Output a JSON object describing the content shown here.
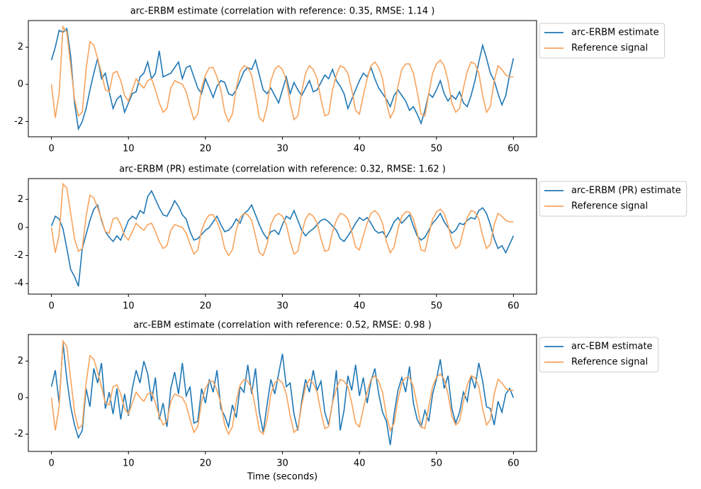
{
  "chart_data": [
    {
      "type": "line",
      "title": "arc-ERBM estimate (correlation with reference: 0.35, RMSE: 1.14 )",
      "x": [
        0,
        0.5,
        1,
        1.5,
        2,
        2.5,
        3,
        3.5,
        4,
        4.5,
        5,
        5.5,
        6,
        6.5,
        7,
        7.5,
        8,
        8.5,
        9,
        9.5,
        10,
        10.5,
        11,
        11.5,
        12,
        12.5,
        13,
        13.5,
        14,
        14.5,
        15,
        15.5,
        16,
        16.5,
        17,
        17.5,
        18,
        18.5,
        19,
        19.5,
        20,
        20.5,
        21,
        21.5,
        22,
        22.5,
        23,
        23.5,
        24,
        24.5,
        25,
        25.5,
        26,
        26.5,
        27,
        27.5,
        28,
        28.5,
        29,
        29.5,
        30,
        30.5,
        31,
        31.5,
        32,
        32.5,
        33,
        33.5,
        34,
        34.5,
        35,
        35.5,
        36,
        36.5,
        37,
        37.5,
        38,
        38.5,
        39,
        39.5,
        40,
        40.5,
        41,
        41.5,
        42,
        42.5,
        43,
        43.5,
        44,
        44.5,
        45,
        45.5,
        46,
        46.5,
        47,
        47.5,
        48,
        48.5,
        49,
        49.5,
        50,
        50.5,
        51,
        51.5,
        52,
        52.5,
        53,
        53.5,
        54,
        54.5,
        55,
        55.5,
        56,
        56.5,
        57,
        57.5,
        58,
        58.5,
        59,
        59.5,
        60
      ],
      "series": [
        {
          "name": "arc-ERBM estimate",
          "color": "#1f77b4",
          "values": [
            1.3,
            2.0,
            2.9,
            2.8,
            3.0,
            1.5,
            -1.0,
            -2.4,
            -2.0,
            -1.3,
            -0.3,
            0.6,
            1.4,
            0.3,
            0.6,
            -0.4,
            -1.3,
            -0.8,
            -0.6,
            -1.5,
            -1.0,
            -0.5,
            -0.4,
            0.4,
            0.6,
            1.2,
            0.3,
            0.6,
            1.8,
            0.4,
            0.5,
            0.6,
            0.9,
            1.2,
            0.3,
            0.9,
            1.0,
            0.4,
            -0.2,
            -0.5,
            0.3,
            -0.2,
            -0.7,
            -0.1,
            0.2,
            0.1,
            -0.5,
            -0.6,
            -0.3,
            0.2,
            0.7,
            0.9,
            0.8,
            1.3,
            0.5,
            -0.3,
            -0.5,
            -0.2,
            -0.6,
            -1.0,
            -0.3,
            0.4,
            -0.5,
            0.1,
            -0.3,
            -0.6,
            -0.2,
            0.2,
            -0.4,
            -0.3,
            0.1,
            0.5,
            0.3,
            0.8,
            0.2,
            -0.1,
            -0.5,
            -1.3,
            -0.8,
            -0.3,
            0.2,
            0.6,
            0.4,
            0.9,
            0.3,
            -0.2,
            -0.5,
            -0.8,
            -1.2,
            -0.6,
            -0.3,
            -0.6,
            -0.9,
            -1.4,
            -1.2,
            -1.6,
            -2.1,
            -1.4,
            -0.5,
            -0.7,
            -0.3,
            0.2,
            -0.5,
            -0.9,
            -0.6,
            -0.8,
            -0.4,
            -1.0,
            -1.2,
            -0.6,
            0.2,
            1.2,
            2.1,
            1.4,
            0.6,
            0.2,
            -0.5,
            -1.1,
            -0.6,
            0.5,
            1.4
          ]
        },
        {
          "name": "Reference signal",
          "color": "#f7a35c",
          "values": [
            0.0,
            -1.8,
            -0.5,
            3.1,
            2.8,
            1.0,
            -0.8,
            -1.7,
            -1.5,
            0.8,
            2.3,
            2.1,
            1.4,
            0.6,
            -0.3,
            -0.4,
            0.6,
            0.7,
            0.2,
            -0.6,
            -0.9,
            -0.3,
            0.3,
            0.0,
            -0.2,
            0.2,
            0.3,
            -0.3,
            -1.0,
            -1.5,
            -1.3,
            -0.2,
            0.2,
            0.1,
            0.0,
            -0.4,
            -1.2,
            -1.9,
            -1.6,
            -0.2,
            0.5,
            0.9,
            0.9,
            0.4,
            -0.3,
            -1.5,
            -2.0,
            -1.6,
            -0.2,
            0.7,
            1.0,
            0.9,
            0.5,
            -0.6,
            -1.8,
            -2.0,
            -1.2,
            0.2,
            0.8,
            1.0,
            0.8,
            0.2,
            -1.0,
            -1.9,
            -1.7,
            -0.4,
            0.6,
            1.0,
            0.8,
            0.3,
            -0.8,
            -1.7,
            -1.6,
            -0.3,
            0.5,
            1.0,
            0.9,
            0.6,
            -0.3,
            -1.4,
            -1.6,
            -0.6,
            0.3,
            1.0,
            1.2,
            0.9,
            0.3,
            -1.0,
            -1.8,
            -1.4,
            -0.1,
            0.8,
            1.1,
            1.1,
            0.6,
            -0.4,
            -1.6,
            -1.7,
            -0.5,
            0.6,
            1.1,
            1.3,
            1.0,
            0.2,
            -1.0,
            -1.5,
            -1.3,
            -0.2,
            0.7,
            1.2,
            1.1,
            0.6,
            -0.6,
            -1.5,
            -1.2,
            0.2,
            1.0,
            0.8,
            0.5,
            0.4,
            0.4
          ]
        }
      ],
      "xlim": [
        -3,
        63
      ],
      "xticks": [
        0,
        10,
        20,
        30,
        40,
        50,
        60
      ],
      "ylim": [
        -2.82,
        3.43
      ],
      "yticks": [
        -2,
        0,
        2
      ],
      "legend": "outside-upper-right"
    },
    {
      "type": "line",
      "title": "arc-ERBM (PR) estimate (correlation with reference: 0.32, RMSE: 1.62 )",
      "x": [
        0,
        0.5,
        1,
        1.5,
        2,
        2.5,
        3,
        3.5,
        4,
        4.5,
        5,
        5.5,
        6,
        6.5,
        7,
        7.5,
        8,
        8.5,
        9,
        9.5,
        10,
        10.5,
        11,
        11.5,
        12,
        12.5,
        13,
        13.5,
        14,
        14.5,
        15,
        15.5,
        16,
        16.5,
        17,
        17.5,
        18,
        18.5,
        19,
        19.5,
        20,
        20.5,
        21,
        21.5,
        22,
        22.5,
        23,
        23.5,
        24,
        24.5,
        25,
        25.5,
        26,
        26.5,
        27,
        27.5,
        28,
        28.5,
        29,
        29.5,
        30,
        30.5,
        31,
        31.5,
        32,
        32.5,
        33,
        33.5,
        34,
        34.5,
        35,
        35.5,
        36,
        36.5,
        37,
        37.5,
        38,
        38.5,
        39,
        39.5,
        40,
        40.5,
        41,
        41.5,
        42,
        42.5,
        43,
        43.5,
        44,
        44.5,
        45,
        45.5,
        46,
        46.5,
        47,
        47.5,
        48,
        48.5,
        49,
        49.5,
        50,
        50.5,
        51,
        51.5,
        52,
        52.5,
        53,
        53.5,
        54,
        54.5,
        55,
        55.5,
        56,
        56.5,
        57,
        57.5,
        58,
        58.5,
        59,
        59.5,
        60
      ],
      "series": [
        {
          "name": "arc-ERBM (PR) estimate",
          "color": "#1f77b4",
          "values": [
            0.1,
            0.8,
            0.6,
            -0.1,
            -1.5,
            -3.0,
            -3.5,
            -4.2,
            -1.5,
            -0.5,
            0.5,
            1.3,
            1.6,
            0.5,
            -0.3,
            -0.7,
            -1.0,
            -0.6,
            -0.9,
            -0.2,
            0.5,
            0.8,
            0.6,
            1.2,
            1.0,
            2.2,
            2.6,
            2.0,
            1.4,
            0.9,
            0.8,
            1.3,
            1.9,
            1.5,
            0.9,
            0.6,
            -0.3,
            -0.9,
            -0.8,
            -0.5,
            -0.2,
            0.0,
            0.4,
            0.8,
            0.2,
            -0.3,
            -0.2,
            0.1,
            0.6,
            0.3,
            1.0,
            1.2,
            1.6,
            0.9,
            0.2,
            -0.4,
            -0.8,
            -0.3,
            -0.2,
            -0.5,
            0.2,
            0.8,
            0.6,
            1.2,
            0.5,
            -0.2,
            -0.6,
            -0.3,
            -0.1,
            0.2,
            0.5,
            0.6,
            0.4,
            0.1,
            -0.2,
            -0.8,
            -1.0,
            -0.6,
            -0.2,
            0.3,
            0.7,
            0.5,
            0.7,
            0.3,
            -0.2,
            -0.4,
            -0.3,
            -0.7,
            -0.2,
            0.4,
            0.7,
            0.3,
            0.6,
            0.9,
            0.1,
            -0.6,
            -0.9,
            -0.7,
            -0.2,
            0.3,
            0.6,
            1.0,
            0.4,
            0.0,
            -0.4,
            -0.2,
            0.3,
            0.2,
            0.5,
            0.7,
            0.6,
            1.2,
            1.4,
            1.0,
            0.2,
            -0.8,
            -1.5,
            -1.3,
            -1.8,
            -1.2,
            -0.6
          ]
        },
        {
          "name": "Reference signal",
          "color": "#f7a35c",
          "values": [
            0.0,
            -1.8,
            -0.5,
            3.1,
            2.8,
            1.0,
            -0.8,
            -1.7,
            -1.5,
            0.8,
            2.3,
            2.1,
            1.4,
            0.6,
            -0.3,
            -0.4,
            0.6,
            0.7,
            0.2,
            -0.6,
            -0.9,
            -0.3,
            0.3,
            0.0,
            -0.2,
            0.2,
            0.3,
            -0.3,
            -1.0,
            -1.5,
            -1.3,
            -0.2,
            0.2,
            0.1,
            0.0,
            -0.4,
            -1.2,
            -1.9,
            -1.6,
            -0.2,
            0.5,
            0.9,
            0.9,
            0.4,
            -0.3,
            -1.5,
            -2.0,
            -1.6,
            -0.2,
            0.7,
            1.0,
            0.9,
            0.5,
            -0.6,
            -1.8,
            -2.0,
            -1.2,
            0.2,
            0.8,
            1.0,
            0.8,
            0.2,
            -1.0,
            -1.9,
            -1.7,
            -0.4,
            0.6,
            1.0,
            0.8,
            0.3,
            -0.8,
            -1.7,
            -1.6,
            -0.3,
            0.5,
            1.0,
            0.9,
            0.6,
            -0.3,
            -1.4,
            -1.6,
            -0.6,
            0.3,
            1.0,
            1.2,
            0.9,
            0.3,
            -1.0,
            -1.8,
            -1.4,
            -0.1,
            0.8,
            1.1,
            1.1,
            0.6,
            -0.4,
            -1.6,
            -1.7,
            -0.5,
            0.6,
            1.1,
            1.3,
            1.0,
            0.2,
            -1.0,
            -1.5,
            -1.3,
            -0.2,
            0.7,
            1.2,
            1.1,
            0.6,
            -0.6,
            -1.5,
            -1.2,
            0.2,
            1.0,
            0.8,
            0.5,
            0.4,
            0.4
          ]
        }
      ],
      "xlim": [
        -3,
        63
      ],
      "xticks": [
        0,
        10,
        20,
        30,
        40,
        50,
        60
      ],
      "ylim": [
        -4.75,
        3.48
      ],
      "yticks": [
        -4,
        -2,
        0,
        2
      ],
      "legend": "outside-upper-right"
    },
    {
      "type": "line",
      "title": "arc-EBM estimate (correlation with reference: 0.52, RMSE: 0.98 )",
      "xlabel": "Time (seconds)",
      "x": [
        0,
        0.5,
        1,
        1.5,
        2,
        2.5,
        3,
        3.5,
        4,
        4.5,
        5,
        5.5,
        6,
        6.5,
        7,
        7.5,
        8,
        8.5,
        9,
        9.5,
        10,
        10.5,
        11,
        11.5,
        12,
        12.5,
        13,
        13.5,
        14,
        14.5,
        15,
        15.5,
        16,
        16.5,
        17,
        17.5,
        18,
        18.5,
        19,
        19.5,
        20,
        20.5,
        21,
        21.5,
        22,
        22.5,
        23,
        23.5,
        24,
        24.5,
        25,
        25.5,
        26,
        26.5,
        27,
        27.5,
        28,
        28.5,
        29,
        29.5,
        30,
        30.5,
        31,
        31.5,
        32,
        32.5,
        33,
        33.5,
        34,
        34.5,
        35,
        35.5,
        36,
        36.5,
        37,
        37.5,
        38,
        38.5,
        39,
        39.5,
        40,
        40.5,
        41,
        41.5,
        42,
        42.5,
        43,
        43.5,
        44,
        44.5,
        45,
        45.5,
        46,
        46.5,
        47,
        47.5,
        48,
        48.5,
        49,
        49.5,
        50,
        50.5,
        51,
        51.5,
        52,
        52.5,
        53,
        53.5,
        54,
        54.5,
        55,
        55.5,
        56,
        56.5,
        57,
        57.5,
        58,
        58.5,
        59,
        59.5,
        60
      ],
      "series": [
        {
          "name": "arc-EBM estimate",
          "color": "#1f77b4",
          "values": [
            0.6,
            1.5,
            -0.3,
            3.0,
            1.0,
            -0.5,
            -1.5,
            -2.2,
            -1.8,
            0.5,
            -0.5,
            1.6,
            0.8,
            1.9,
            -0.6,
            0.3,
            -0.9,
            0.5,
            -1.2,
            0.2,
            -1.0,
            0.5,
            1.5,
            0.8,
            2.0,
            1.3,
            -0.2,
            1.1,
            -1.2,
            -0.3,
            -1.6,
            0.5,
            1.4,
            0.2,
            1.9,
            0.1,
            0.6,
            -1.4,
            -1.3,
            0.5,
            -0.3,
            1.0,
            0.3,
            1.5,
            -0.6,
            -1.0,
            -1.6,
            -0.4,
            -1.1,
            0.6,
            0.3,
            1.8,
            0.2,
            1.6,
            -0.8,
            -1.9,
            -0.4,
            1.0,
            0.2,
            1.3,
            2.4,
            0.6,
            0.8,
            -0.9,
            -1.8,
            -0.2,
            1.0,
            0.3,
            1.5,
            0.4,
            0.9,
            -0.8,
            -1.5,
            -0.3,
            1.5,
            -1.8,
            -0.7,
            1.2,
            0.4,
            1.8,
            0.1,
            1.1,
            -0.3,
            0.9,
            1.6,
            0.2,
            -0.8,
            -1.3,
            -2.6,
            -0.9,
            0.4,
            1.1,
            0.3,
            1.7,
            -0.3,
            -1.2,
            -1.6,
            -0.7,
            -1.3,
            0.2,
            1.0,
            2.1,
            0.5,
            1.2,
            -0.6,
            -1.4,
            -0.8,
            0.3,
            -0.2,
            1.2,
            0.5,
            1.9,
            0.9,
            -0.5,
            -0.6,
            -1.5,
            -0.2,
            -0.8,
            0.2,
            0.5,
            0.0
          ]
        },
        {
          "name": "Reference signal",
          "color": "#f7a35c",
          "values": [
            0.0,
            -1.8,
            -0.5,
            3.1,
            2.8,
            1.0,
            -0.8,
            -1.7,
            -1.5,
            0.8,
            2.3,
            2.1,
            1.4,
            0.6,
            -0.3,
            -0.4,
            0.6,
            0.7,
            0.2,
            -0.6,
            -0.9,
            -0.3,
            0.3,
            0.0,
            -0.2,
            0.2,
            0.3,
            -0.3,
            -1.0,
            -1.5,
            -1.3,
            -0.2,
            0.2,
            0.1,
            0.0,
            -0.4,
            -1.2,
            -1.9,
            -1.6,
            -0.2,
            0.5,
            0.9,
            0.9,
            0.4,
            -0.3,
            -1.5,
            -2.0,
            -1.6,
            -0.2,
            0.7,
            1.0,
            0.9,
            0.5,
            -0.6,
            -1.8,
            -2.0,
            -1.2,
            0.2,
            0.8,
            1.0,
            0.8,
            0.2,
            -1.0,
            -1.9,
            -1.7,
            -0.4,
            0.6,
            1.0,
            0.8,
            0.3,
            -0.8,
            -1.7,
            -1.6,
            -0.3,
            0.5,
            1.0,
            0.9,
            0.6,
            -0.3,
            -1.4,
            -1.6,
            -0.6,
            0.3,
            1.0,
            1.2,
            0.9,
            0.3,
            -1.0,
            -1.8,
            -1.4,
            -0.1,
            0.8,
            1.1,
            1.1,
            0.6,
            -0.4,
            -1.6,
            -1.7,
            -0.5,
            0.6,
            1.1,
            1.3,
            1.0,
            0.2,
            -1.0,
            -1.5,
            -1.3,
            -0.2,
            0.7,
            1.2,
            1.1,
            0.6,
            -0.6,
            -1.5,
            -1.2,
            0.2,
            1.0,
            0.8,
            0.5,
            0.4,
            0.4
          ]
        }
      ],
      "xlim": [
        -3,
        63
      ],
      "xticks": [
        0,
        10,
        20,
        30,
        40,
        50,
        60
      ],
      "ylim": [
        -2.95,
        3.46
      ],
      "yticks": [
        -2,
        0,
        2
      ],
      "legend": "outside-upper-right"
    }
  ]
}
